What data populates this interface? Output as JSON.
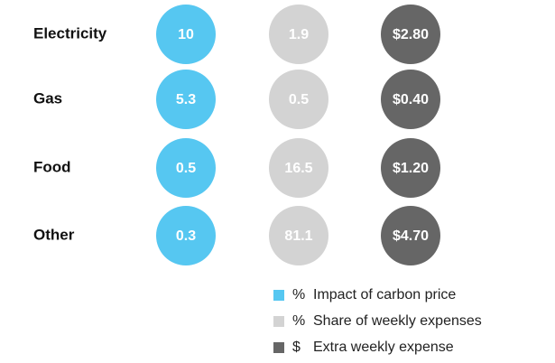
{
  "table": {
    "rows": [
      [
        "Electricity",
        "10",
        "1.9",
        "$2.80"
      ],
      [
        "Gas",
        "5.3",
        "0.5",
        "$0.40"
      ],
      [
        "Food",
        "0.5",
        "16.5",
        "$1.20"
      ],
      [
        "Other",
        "0.3",
        "81.1",
        "$4.70"
      ]
    ],
    "colors": [
      "#56c7f1",
      "#d3d3d3",
      "#666666"
    ]
  },
  "legend": [
    {
      "symbol": "%",
      "label": "Impact of carbon price"
    },
    {
      "symbol": "%",
      "label": "Share of weekly expenses"
    },
    {
      "symbol": "$",
      "label": "Extra weekly expense"
    }
  ]
}
